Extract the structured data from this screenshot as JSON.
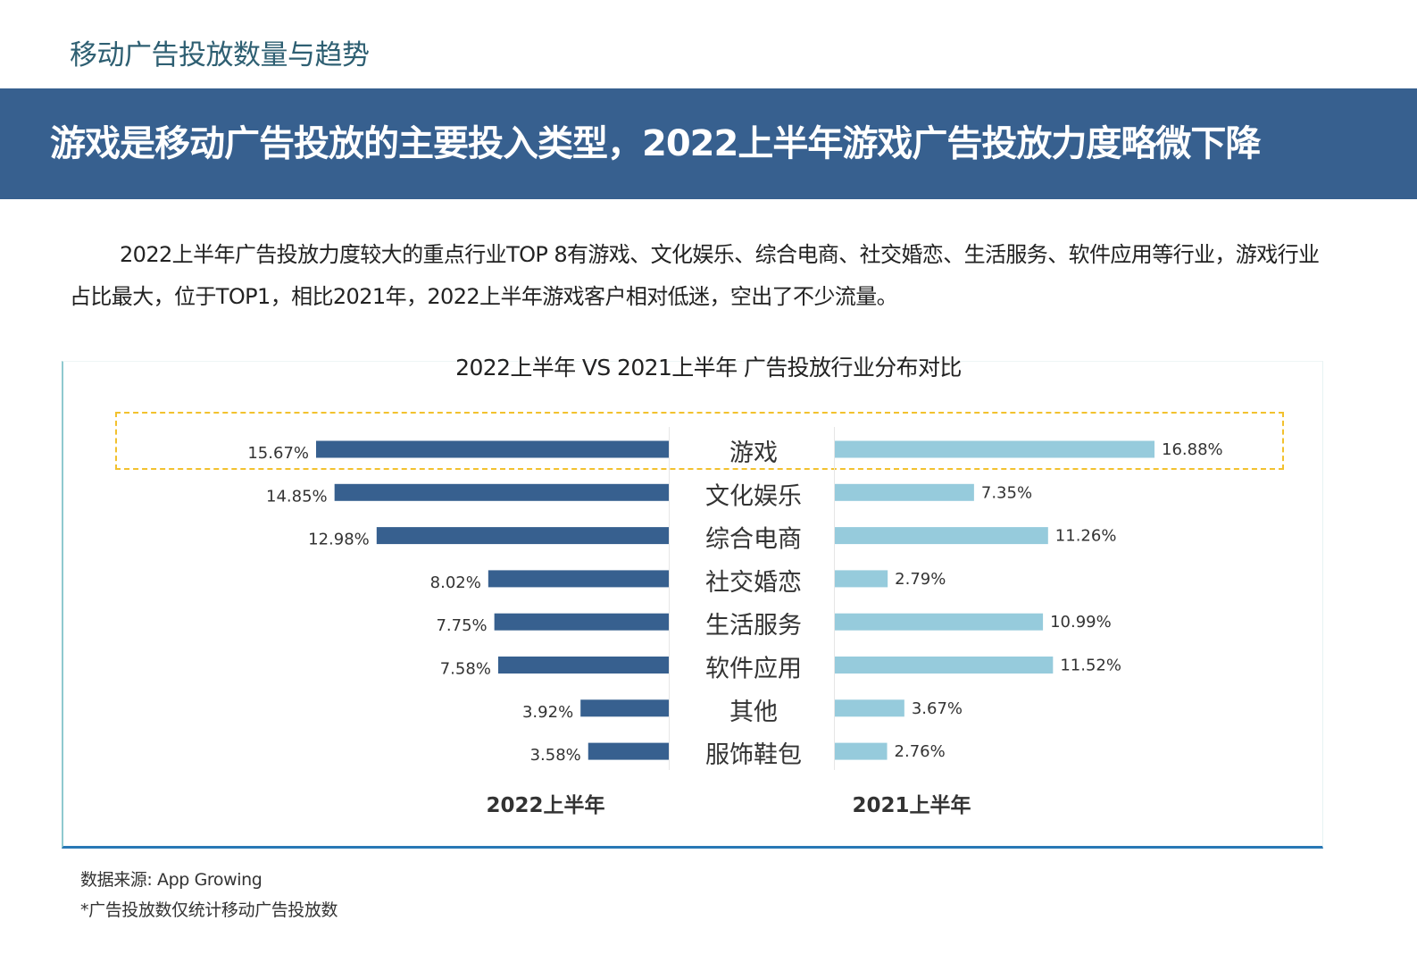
{
  "page": {
    "section_title": "移动广告投放数量与趋势",
    "banner_title": "游戏是移动广告投放的主要投入类型，2022上半年游戏广告投放力度略微下降",
    "description": "2022上半年广告投放力度较大的重点行业TOP 8有游戏、文化娱乐、综合电商、社交婚恋、生活服务、软件应用等行业，游戏行业占比最大，位于TOP1，相比2021年，2022上半年游戏客户相对低迷，空出了不少流量。",
    "source": "数据来源: App Growing",
    "note": "*广告投放数仅统计移动广告投放数"
  },
  "colors": {
    "banner": "#37608f",
    "section_title": "#2e5f72",
    "bar_2022": "#37608f",
    "bar_2021": "#96cbdc",
    "highlight": "#f2c12e"
  },
  "chart_data": {
    "type": "bar",
    "orientation": "horizontal-butterfly",
    "title": "2022上半年 VS 2021上半年 广告投放行业分布对比",
    "categories": [
      "游戏",
      "文化娱乐",
      "综合电商",
      "社交婚恋",
      "生活服务",
      "软件应用",
      "其他",
      "服饰鞋包"
    ],
    "series": [
      {
        "name": "2022上半年",
        "side": "left",
        "values": [
          15.67,
          14.85,
          12.98,
          8.02,
          7.75,
          7.58,
          3.92,
          3.58
        ],
        "labels": [
          "15.67%",
          "14.85%",
          "12.98%",
          "8.02%",
          "7.75%",
          "7.58%",
          "3.92%",
          "3.58%"
        ]
      },
      {
        "name": "2021上半年",
        "side": "right",
        "values": [
          16.88,
          7.35,
          11.26,
          2.79,
          10.99,
          11.52,
          3.67,
          2.76
        ],
        "labels": [
          "16.88%",
          "7.35%",
          "11.26%",
          "2.79%",
          "10.99%",
          "11.52%",
          "3.67%",
          "2.76%"
        ]
      }
    ],
    "unit": "%",
    "highlighted_category": "游戏",
    "grid": false
  }
}
